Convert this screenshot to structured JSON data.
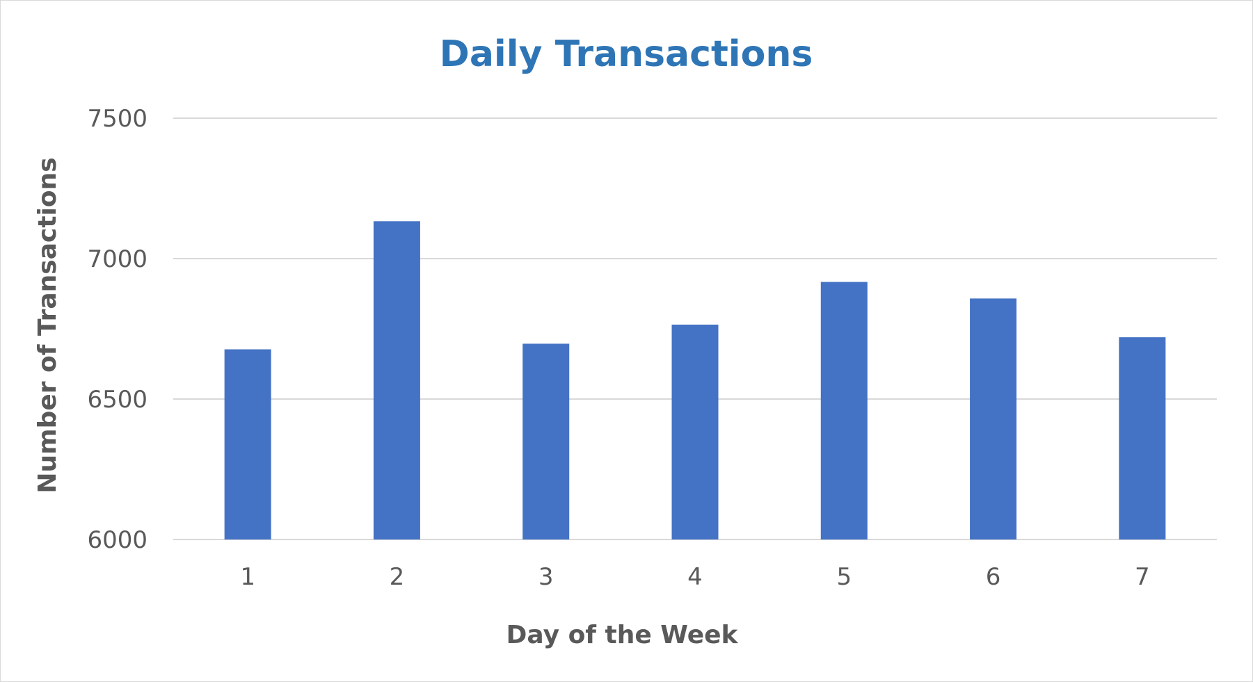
{
  "chart_data": {
    "type": "bar",
    "title": "Daily Transactions",
    "xlabel": "Day of the Week",
    "ylabel": "Number of Transactions",
    "categories": [
      "1",
      "2",
      "3",
      "4",
      "5",
      "6",
      "7"
    ],
    "values": [
      6677,
      7133,
      6697,
      6765,
      6917,
      6858,
      6720
    ],
    "ylim": [
      6000,
      7500
    ],
    "yticks": [
      "6000",
      "6500",
      "7000",
      "7500"
    ],
    "grid": true,
    "legend": "none",
    "bar_color": "#4472c4"
  }
}
